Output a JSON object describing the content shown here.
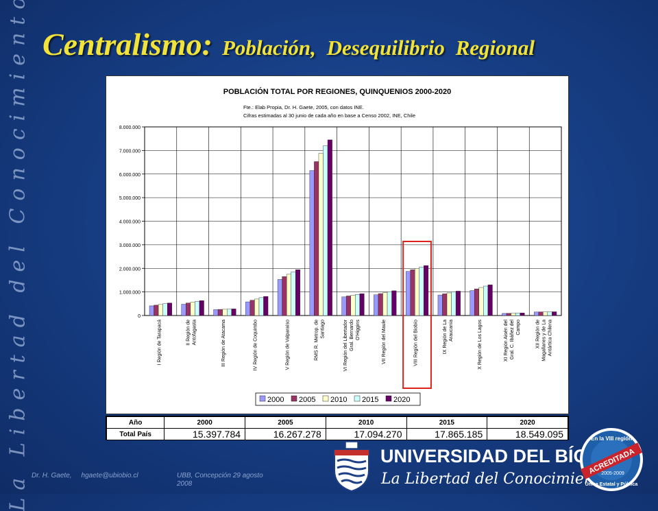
{
  "side_text": "La Libertad del Conocimiento",
  "title": {
    "main": "Centralismo:",
    "sub": "Población, Desequilibrio Regional"
  },
  "chart_data": {
    "type": "bar",
    "title": "POBLACIÓN TOTAL POR REGIONES, QUINQUENIOS 2000-2020",
    "notes": [
      "Fte.: Elab Propia, Dr. H. Gaete, 2005, con datos INE.",
      "Cifras estimadas al 30 junio de cada año en base a Censo 2002, INE, Chile"
    ],
    "ylim": [
      0,
      8000000
    ],
    "yticks": [
      "0",
      "1.000.000",
      "2.000.000",
      "3.000.000",
      "4.000.000",
      "5.000.000",
      "6.000.000",
      "7.000.000",
      "8.000.000"
    ],
    "grid": true,
    "legend_position": "bottom",
    "categories": [
      [
        "I Región de Tarapacá"
      ],
      [
        "II Región de",
        "Antofagasta"
      ],
      [
        "III Región de Atacama"
      ],
      [
        "IV Región de Coquimbo"
      ],
      [
        "V Región de Valparaíso"
      ],
      [
        "RMS R. Metrop. de",
        "Santiago"
      ],
      [
        "VI Región del Libertador",
        "Gral. Bernardo",
        "O'Higgins"
      ],
      [
        "VII Región del Maule"
      ],
      [
        "VIII Región del Biobío"
      ],
      [
        "IX Región de La",
        "Araucanía"
      ],
      [
        "X Región de Los Lagos"
      ],
      [
        "XI Región Aisén del",
        "Gral. C. Ibáñez del",
        "Campo"
      ],
      [
        "XII Región de",
        "Magallanes y de La",
        "Antártica Chilena"
      ]
    ],
    "series": [
      {
        "name": "2000",
        "color": "#9999ff",
        "values": [
          410000,
          480000,
          250000,
          580000,
          1530000,
          6150000,
          790000,
          880000,
          1870000,
          870000,
          1060000,
          90000,
          150000
        ]
      },
      {
        "name": "2005",
        "color": "#993366",
        "values": [
          440000,
          530000,
          260000,
          650000,
          1650000,
          6530000,
          830000,
          930000,
          1940000,
          920000,
          1130000,
          95000,
          155000
        ]
      },
      {
        "name": "2010",
        "color": "#ffffcc",
        "values": [
          470000,
          570000,
          265000,
          700000,
          1750000,
          6880000,
          860000,
          970000,
          2000000,
          960000,
          1190000,
          100000,
          155000
        ]
      },
      {
        "name": "2015",
        "color": "#ccffff",
        "values": [
          500000,
          600000,
          270000,
          760000,
          1850000,
          7200000,
          895000,
          1010000,
          2060000,
          1000000,
          1250000,
          105000,
          158000
        ]
      },
      {
        "name": "2020",
        "color": "#660066",
        "values": [
          530000,
          630000,
          280000,
          810000,
          1940000,
          7450000,
          925000,
          1050000,
          2120000,
          1035000,
          1300000,
          110000,
          160000
        ]
      }
    ],
    "highlight_category_index": 8,
    "highlight_color": "#e0201b"
  },
  "table": {
    "header_label": "Año",
    "row_label": "Total País",
    "years": [
      "2000",
      "2005",
      "2010",
      "2015",
      "2020"
    ],
    "totals": [
      "15.397.784",
      "16.267.278",
      "17.094.270",
      "17.865.185",
      "18.549.095"
    ]
  },
  "footer": {
    "author": "Dr. H. Gaete,",
    "email": "hgaete@ubiobio.cl",
    "place": "UBB, Concepción 29 agosto 2008"
  },
  "university": {
    "name": "UNIVERSIDAD DEL BÍO-BÍO",
    "tagline": "La Libertad del Conocimiento"
  },
  "seal": {
    "top": "En la VIII región",
    "middle": "ACREDITADA",
    "years": "2005-2009",
    "bottom": "Única Estatal y Pública"
  }
}
